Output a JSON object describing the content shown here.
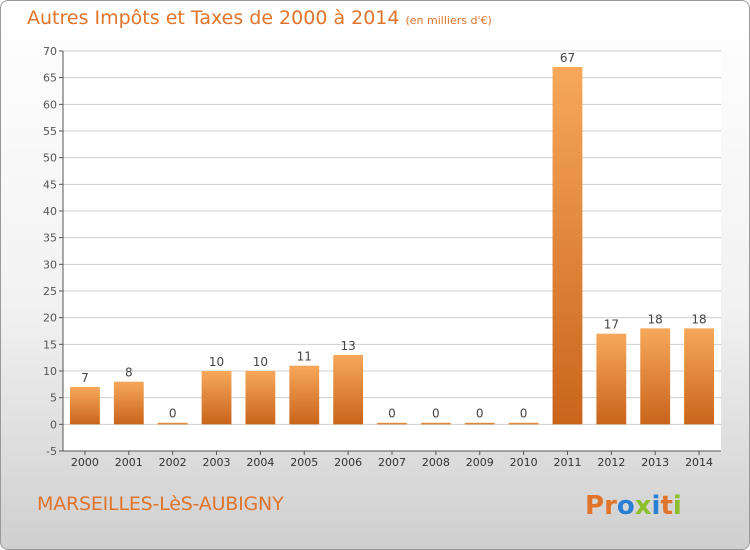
{
  "header": {
    "title": "Autres Impôts et Taxes de 2000 à 2014",
    "subtitle": "(en milliers d'€)"
  },
  "footer": {
    "commune": "MARSEILLES-LèS-AUBIGNY",
    "logo": "Proxiti"
  },
  "colors": {
    "accent": "#e0742a",
    "bar_light": "#f7a85a",
    "bar_dark": "#c9641b",
    "axis": "#555555",
    "grid": "#cfcfcf"
  },
  "chart_data": {
    "type": "bar",
    "title": "Autres Impôts et Taxes de 2000 à 2014",
    "subtitle": "(en milliers d'€)",
    "categories": [
      "2000",
      "2001",
      "2002",
      "2003",
      "2004",
      "2005",
      "2006",
      "2007",
      "2008",
      "2009",
      "2010",
      "2011",
      "2012",
      "2013",
      "2014"
    ],
    "values": [
      7,
      8,
      0,
      10,
      10,
      11,
      13,
      0,
      0,
      0,
      0,
      67,
      17,
      18,
      18
    ],
    "ylim": [
      -5,
      70
    ],
    "yticks": [
      -5,
      0,
      5,
      10,
      15,
      20,
      25,
      30,
      35,
      40,
      45,
      50,
      55,
      60,
      65,
      70
    ],
    "grid": true,
    "data_labels": true
  }
}
